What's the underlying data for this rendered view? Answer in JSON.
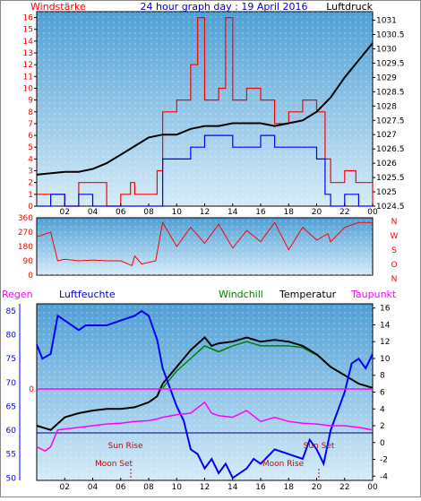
{
  "header": {
    "left_label": "Windstärke",
    "title": "24 hour graph day : 19 April 2016",
    "right_label": "Luftdruck"
  },
  "legend_bottom": {
    "regen": "Regen",
    "luftfeuchte": "Luftfeuchte",
    "windchill": "Windchill",
    "temperatur": "Temperatur",
    "taupunkt": "Taupunkt"
  },
  "annotations": {
    "sun_rise": "Sun Rise",
    "sun_set": "Sun Set",
    "moon_set": "Moon Set",
    "moon_rise": "Moon Rise",
    "zero": "0"
  },
  "colors": {
    "panel_top": "#4fa0d6",
    "panel_bottom": "#d6ebf8",
    "wind_gust": "#ff0000",
    "wind_mean": "#0000ff",
    "pressure": "#000000",
    "humidity": "#0000ff",
    "temperature": "#000000",
    "windchill": "#008000",
    "dewpoint": "#ff00ff",
    "left_axis": "#ff0000",
    "rain_axis": "#0000ff"
  },
  "chart_data": [
    {
      "type": "bar",
      "name": "wind",
      "xticks": [
        "02",
        "04",
        "06",
        "08",
        "10",
        "12",
        "14",
        "16",
        "18",
        "20",
        "22",
        "00"
      ],
      "left_axis": {
        "ylim": [
          0,
          16.5
        ],
        "ticks": [
          "0",
          "1",
          "2",
          "3",
          "4",
          "5",
          "6",
          "7",
          "8",
          "9",
          "10",
          "11",
          "12",
          "13",
          "14",
          "15",
          "16"
        ]
      },
      "right_axis": {
        "ylim": [
          1024.5,
          1031.3
        ],
        "ticks": [
          "1024.5",
          "1025",
          "1025.5",
          "1026",
          "1026.5",
          "1027",
          "1027.5",
          "1028",
          "1028.5",
          "1029",
          "1029.5",
          "1030",
          "1030.5",
          "1031"
        ]
      },
      "series": [
        {
          "name": "gust",
          "points": [
            [
              0,
              1
            ],
            [
              1.5,
              1
            ],
            [
              2,
              0
            ],
            [
              3,
              2
            ],
            [
              4.5,
              2
            ],
            [
              5,
              0
            ],
            [
              6,
              1
            ],
            [
              6.7,
              2
            ],
            [
              7,
              1
            ],
            [
              8,
              1
            ],
            [
              8.6,
              3
            ],
            [
              9,
              8
            ],
            [
              10,
              9
            ],
            [
              11,
              12
            ],
            [
              11.5,
              16
            ],
            [
              12,
              9
            ],
            [
              13,
              10
            ],
            [
              13.5,
              16
            ],
            [
              14,
              9
            ],
            [
              15,
              10
            ],
            [
              16,
              9
            ],
            [
              17,
              7
            ],
            [
              18,
              8
            ],
            [
              19,
              9
            ],
            [
              20,
              8
            ],
            [
              20.6,
              4
            ],
            [
              21,
              2
            ],
            [
              22,
              3
            ],
            [
              22.8,
              2
            ],
            [
              23,
              2
            ],
            [
              24,
              0
            ]
          ]
        },
        {
          "name": "mean",
          "points": [
            [
              0,
              0
            ],
            [
              1,
              1
            ],
            [
              2,
              0
            ],
            [
              3,
              1
            ],
            [
              4,
              0
            ],
            [
              8.6,
              0
            ],
            [
              9,
              4
            ],
            [
              10,
              4
            ],
            [
              11,
              5
            ],
            [
              12,
              6
            ],
            [
              13,
              6
            ],
            [
              14,
              5
            ],
            [
              15,
              5
            ],
            [
              16,
              6
            ],
            [
              17,
              5
            ],
            [
              18,
              5
            ],
            [
              19,
              5
            ],
            [
              20,
              4
            ],
            [
              20.6,
              1
            ],
            [
              21,
              0
            ],
            [
              22,
              1
            ],
            [
              23,
              0
            ],
            [
              24,
              0
            ]
          ]
        },
        {
          "name": "pressure",
          "points": [
            [
              0,
              1025.6
            ],
            [
              2,
              1025.7
            ],
            [
              3,
              1025.7
            ],
            [
              4,
              1025.8
            ],
            [
              5,
              1026.0
            ],
            [
              6,
              1026.3
            ],
            [
              7,
              1026.6
            ],
            [
              8,
              1026.9
            ],
            [
              9,
              1027.0
            ],
            [
              10,
              1027.0
            ],
            [
              11,
              1027.2
            ],
            [
              12,
              1027.3
            ],
            [
              13,
              1027.3
            ],
            [
              14,
              1027.4
            ],
            [
              15,
              1027.4
            ],
            [
              16,
              1027.4
            ],
            [
              17,
              1027.3
            ],
            [
              18,
              1027.4
            ],
            [
              19,
              1027.5
            ],
            [
              20,
              1027.8
            ],
            [
              21,
              1028.3
            ],
            [
              22,
              1029.0
            ],
            [
              23,
              1029.6
            ],
            [
              24,
              1030.2
            ]
          ]
        }
      ]
    },
    {
      "type": "line",
      "name": "wind_direction",
      "ylim": [
        0,
        360
      ],
      "left_ticks": [
        "0",
        "90",
        "180",
        "270",
        "360"
      ],
      "right_labels": [
        "N",
        "W",
        "S",
        "O",
        "N"
      ],
      "series": [
        {
          "name": "direction",
          "points": [
            [
              0,
              240
            ],
            [
              1,
              270
            ],
            [
              1.5,
              90
            ],
            [
              2,
              100
            ],
            [
              3,
              90
            ],
            [
              4,
              95
            ],
            [
              5,
              90
            ],
            [
              6,
              90
            ],
            [
              6.8,
              60
            ],
            [
              7,
              120
            ],
            [
              7.5,
              70
            ],
            [
              8.5,
              90
            ],
            [
              9,
              330
            ],
            [
              10,
              180
            ],
            [
              11,
              300
            ],
            [
              12,
              200
            ],
            [
              13,
              320
            ],
            [
              14,
              170
            ],
            [
              15,
              280
            ],
            [
              16,
              210
            ],
            [
              17,
              330
            ],
            [
              18,
              160
            ],
            [
              19,
              300
            ],
            [
              20,
              220
            ],
            [
              20.8,
              260
            ],
            [
              21,
              210
            ],
            [
              22,
              300
            ],
            [
              23,
              330
            ],
            [
              24,
              330
            ]
          ]
        }
      ]
    },
    {
      "type": "line",
      "name": "temperature_humidity",
      "left_axis": {
        "label": "Luftfeuchte",
        "ylim": [
          49.5,
          86.5
        ],
        "ticks": [
          "50",
          "55",
          "60",
          "65",
          "70",
          "75",
          "80",
          "85"
        ]
      },
      "right_axis": {
        "label": "Temperatur",
        "ylim": [
          -4.5,
          16.5
        ],
        "ticks": [
          "-4",
          "-2",
          "0",
          "2",
          "4",
          "6",
          "8",
          "10",
          "12",
          "14",
          "16"
        ]
      },
      "series": [
        {
          "name": "Luftfeuchte",
          "axis": "left",
          "points": [
            [
              0,
              78
            ],
            [
              0.4,
              75
            ],
            [
              1,
              76
            ],
            [
              1.5,
              84
            ],
            [
              2,
              83
            ],
            [
              3,
              81
            ],
            [
              3.5,
              82
            ],
            [
              4,
              82
            ],
            [
              5,
              82
            ],
            [
              6,
              83
            ],
            [
              7,
              84
            ],
            [
              7.5,
              85
            ],
            [
              8,
              84
            ],
            [
              8.6,
              79
            ],
            [
              9,
              73
            ],
            [
              10,
              65
            ],
            [
              10.5,
              62
            ],
            [
              11,
              56
            ],
            [
              11.5,
              55
            ],
            [
              12,
              52
            ],
            [
              12.5,
              54
            ],
            [
              13,
              51
            ],
            [
              13.5,
              53
            ],
            [
              14,
              50
            ],
            [
              15,
              52
            ],
            [
              15.5,
              54
            ],
            [
              16,
              53
            ],
            [
              17,
              56
            ],
            [
              18,
              55
            ],
            [
              19,
              54
            ],
            [
              19.5,
              58
            ],
            [
              20,
              56
            ],
            [
              20.5,
              53
            ],
            [
              21,
              60
            ],
            [
              22,
              68
            ],
            [
              22.5,
              74
            ],
            [
              23,
              75
            ],
            [
              23.5,
              73
            ],
            [
              24,
              76
            ]
          ]
        },
        {
          "name": "Temperatur",
          "axis": "right",
          "points": [
            [
              0,
              2.0
            ],
            [
              0.6,
              1.7
            ],
            [
              1,
              1.5
            ],
            [
              2,
              3.0
            ],
            [
              3,
              3.5
            ],
            [
              4,
              3.8
            ],
            [
              5,
              4.0
            ],
            [
              6,
              4.0
            ],
            [
              7,
              4.2
            ],
            [
              8,
              4.8
            ],
            [
              8.6,
              5.5
            ],
            [
              9,
              7.0
            ],
            [
              10,
              9.0
            ],
            [
              11,
              11.0
            ],
            [
              12,
              12.5
            ],
            [
              12.5,
              11.5
            ],
            [
              13,
              11.8
            ],
            [
              14,
              12.0
            ],
            [
              15,
              12.5
            ],
            [
              16,
              12.0
            ],
            [
              17,
              12.2
            ],
            [
              18,
              12.0
            ],
            [
              19,
              11.5
            ],
            [
              20,
              10.5
            ],
            [
              21,
              9.0
            ],
            [
              22,
              8.0
            ],
            [
              23,
              7.0
            ],
            [
              24,
              6.5
            ]
          ]
        },
        {
          "name": "Windchill",
          "axis": "right",
          "points": [
            [
              9,
              6.5
            ],
            [
              10,
              8.5
            ],
            [
              11,
              10.0
            ],
            [
              12,
              11.5
            ],
            [
              13,
              10.8
            ],
            [
              14,
              11.5
            ],
            [
              15,
              12.0
            ],
            [
              16,
              11.5
            ],
            [
              17,
              11.5
            ],
            [
              18,
              11.5
            ],
            [
              19,
              11.3
            ],
            [
              20,
              10.4
            ]
          ]
        },
        {
          "name": "Taupunkt",
          "axis": "right",
          "points": [
            [
              0,
              -0.5
            ],
            [
              0.6,
              -1.0
            ],
            [
              1,
              -0.5
            ],
            [
              1.5,
              1.5
            ],
            [
              2,
              1.6
            ],
            [
              3,
              1.8
            ],
            [
              4,
              2.0
            ],
            [
              5,
              2.2
            ],
            [
              6,
              2.3
            ],
            [
              7,
              2.5
            ],
            [
              8,
              2.6
            ],
            [
              8.6,
              2.8
            ],
            [
              9,
              3.0
            ],
            [
              10,
              3.3
            ],
            [
              11,
              3.5
            ],
            [
              12,
              4.8
            ],
            [
              12.5,
              3.5
            ],
            [
              13,
              3.2
            ],
            [
              14,
              3.0
            ],
            [
              15,
              3.8
            ],
            [
              16,
              2.5
            ],
            [
              17,
              3.0
            ],
            [
              18,
              2.5
            ],
            [
              19,
              2.3
            ],
            [
              20,
              2.2
            ],
            [
              21,
              2.0
            ],
            [
              22,
              2.0
            ],
            [
              23,
              1.8
            ],
            [
              24,
              1.5
            ]
          ]
        }
      ]
    }
  ]
}
